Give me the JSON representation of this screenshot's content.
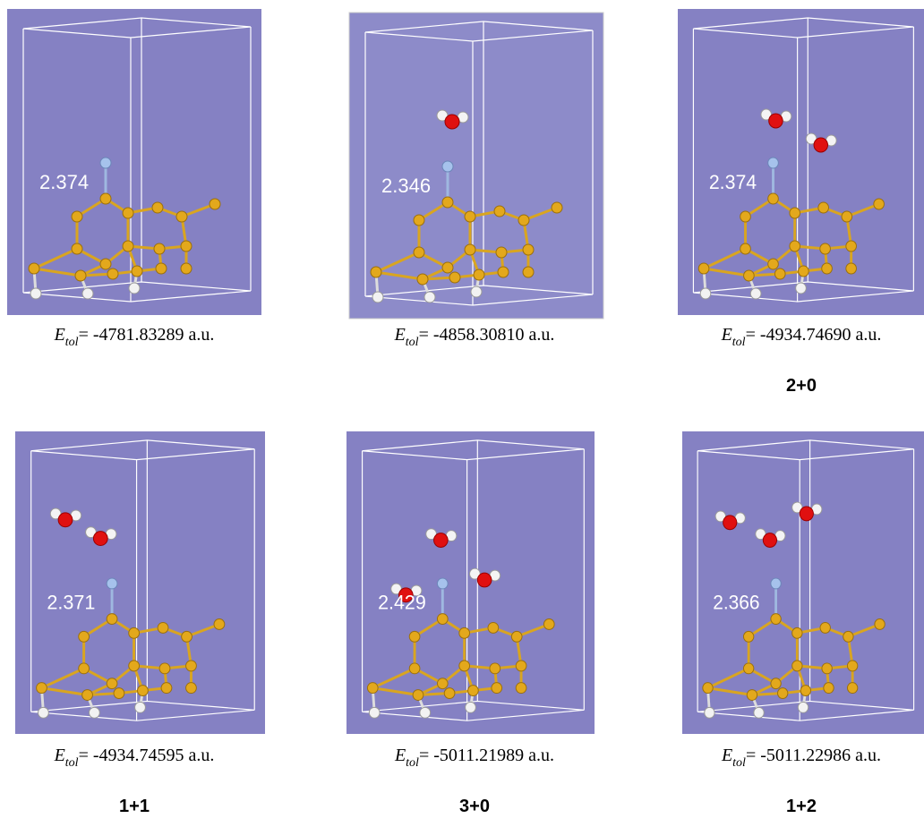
{
  "panels": [
    {
      "bond_length": "2.374",
      "energy": {
        "symbol": "E",
        "subscript": "tol",
        "value": "= -4781.83289 a.u."
      }
    },
    {
      "bond_length": "2.346",
      "energy": {
        "symbol": "E",
        "subscript": "tol",
        "value": "= -4858.30810 a.u."
      }
    },
    {
      "bond_length": "2.374",
      "energy": {
        "symbol": "E",
        "subscript": "tol",
        "value": "= -4934.74690 a.u."
      },
      "label": "2+0"
    },
    {
      "bond_length": "2.371",
      "energy": {
        "symbol": "E",
        "subscript": "tol",
        "value": "= -4934.74595 a.u."
      },
      "label": "1+1"
    },
    {
      "bond_length": "2.429",
      "energy": {
        "symbol": "E",
        "subscript": "tol",
        "value": "= -5011.21989 a.u."
      },
      "label": "3+0"
    },
    {
      "bond_length": "2.366",
      "energy": {
        "symbol": "E",
        "subscript": "tol",
        "value": "= -5011.22986 a.u."
      },
      "label": "1+2"
    }
  ]
}
